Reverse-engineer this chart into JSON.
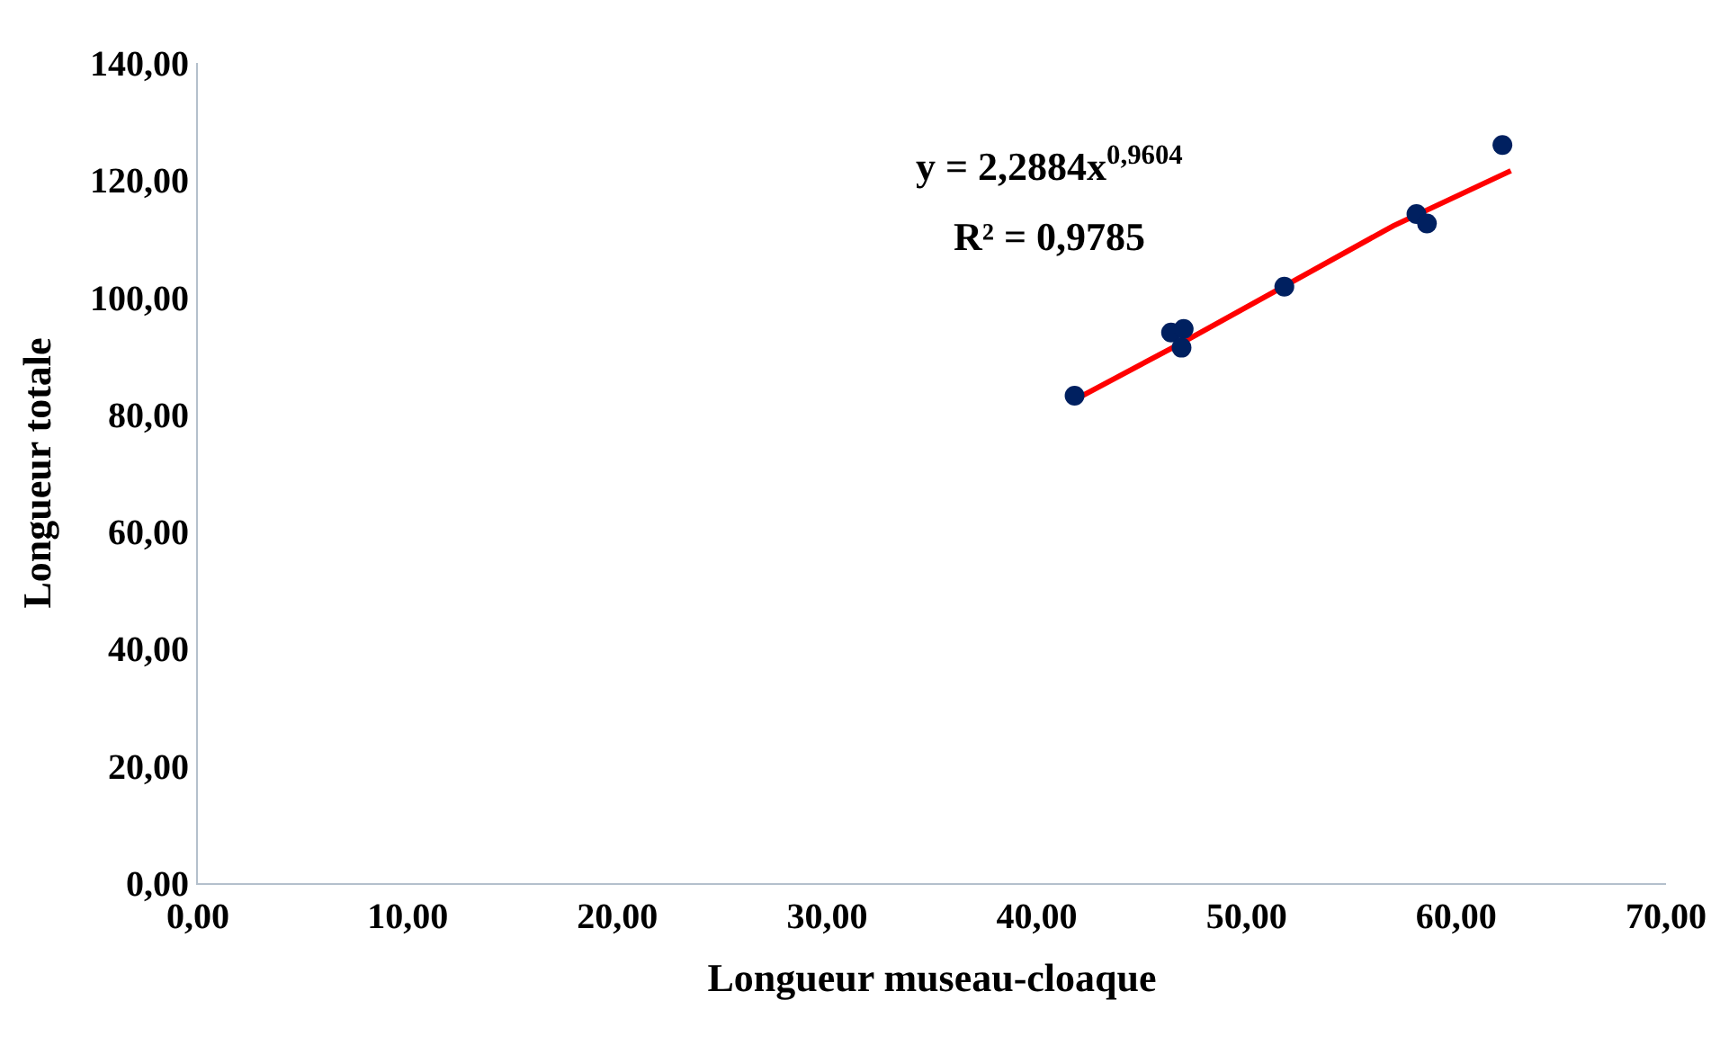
{
  "chart_data": {
    "type": "scatter",
    "xlabel": "Longueur museau-cloaque",
    "ylabel": "Longueur totale",
    "x": [
      41.8,
      46.4,
      47.0,
      46.9,
      51.8,
      58.1,
      58.6,
      62.2
    ],
    "series": [
      {
        "marker": "circle",
        "color": "#002060",
        "values": [
          83.2,
          94.0,
          94.6,
          91.4,
          101.8,
          114.2,
          112.6,
          126.0
        ]
      },
      {
        "type": "line",
        "marker": "none",
        "color": "#ff0000",
        "x": [
          41.8,
          47.0,
          52.0,
          57.0,
          62.6
        ],
        "values": [
          82.5,
          92.4,
          102.3,
          112.2,
          121.6
        ]
      }
    ],
    "annotations": [
      "y = 2,2884x$^{0,9604}$",
      "R² = 0,9785"
    ],
    "xlim": [
      0,
      70
    ],
    "ylim": [
      0,
      140
    ],
    "xticks": [
      {
        "value": 0,
        "label": "0,00"
      },
      {
        "value": 10,
        "label": "10,00"
      },
      {
        "value": 20,
        "label": "20,00"
      },
      {
        "value": 30,
        "label": "30,00"
      },
      {
        "value": 40,
        "label": "40,00"
      },
      {
        "value": 50,
        "label": "50,00"
      },
      {
        "value": 60,
        "label": "60,00"
      },
      {
        "value": 70,
        "label": "70,00"
      }
    ],
    "yticks": [
      {
        "value": 0,
        "label": "0,00"
      },
      {
        "value": 20,
        "label": "20,00"
      },
      {
        "value": 40,
        "label": "40,00"
      },
      {
        "value": 60,
        "label": "60,00"
      },
      {
        "value": 80,
        "label": "80,00"
      },
      {
        "value": 100,
        "label": "100,00"
      },
      {
        "value": 120,
        "label": "120,00"
      },
      {
        "value": 140,
        "label": "140,00"
      }
    ],
    "grid": false
  }
}
